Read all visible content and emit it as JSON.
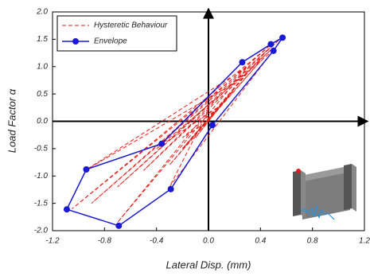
{
  "chart_data": {
    "type": "line",
    "xlabel": "Lateral Disp. (mm)",
    "ylabel": "Load Factor α",
    "xlim": [
      -1.2,
      1.2
    ],
    "xticks": [
      -1.2,
      -0.8,
      -0.4,
      {
        "value": 0,
        "label": "0.0"
      },
      0.4,
      0.8,
      1.2
    ],
    "ylim": [
      -2,
      2
    ],
    "yticks": [
      {
        "value": -2,
        "label": "-2.0"
      },
      -1.5,
      {
        "value": -1,
        "label": "-1.0"
      },
      -0.5,
      {
        "value": 0,
        "label": "0.0"
      },
      0.5,
      {
        "value": 1,
        "label": "1.0"
      },
      1.5,
      {
        "value": 2,
        "label": "2.0"
      }
    ],
    "legend": "upper left",
    "series": [
      {
        "name": "Hysteretic Behaviour",
        "color": "#e8201c",
        "dashed": true,
        "markers": false,
        "x": [
          0,
          0.1,
          -0.05,
          0.2,
          -0.1,
          0.3,
          -0.2,
          0.4,
          -0.3,
          0.45,
          -0.5,
          0.5,
          -0.7,
          0.55,
          -0.9,
          0.48,
          -1.05,
          0.3,
          -0.95,
          0.2,
          -0.7,
          0,
          -0.3,
          0.5,
          -0.4,
          0.1,
          -0.2,
          0
        ],
        "values": [
          0,
          0.3,
          -0.1,
          0.6,
          -0.3,
          0.9,
          -0.5,
          1.1,
          -0.8,
          1.3,
          -0.9,
          1.35,
          -1.2,
          1.5,
          -1.5,
          1.4,
          -1.6,
          1.0,
          -0.9,
          0.7,
          -1.85,
          0.2,
          -1.2,
          1.3,
          -0.5,
          0.3,
          -0.3,
          0
        ]
      },
      {
        "name": "Envelope",
        "color": "#1a1ad6",
        "dashed": false,
        "markers": true,
        "x": [
          -0.36,
          0.26,
          0.48,
          0.57,
          0.5,
          0.03,
          -0.29,
          -0.69,
          -1.09,
          -0.94
        ],
        "values": [
          -0.41,
          1.08,
          1.41,
          1.53,
          1.29,
          -0.07,
          -1.24,
          -1.91,
          -1.61,
          -0.88
        ]
      }
    ]
  }
}
